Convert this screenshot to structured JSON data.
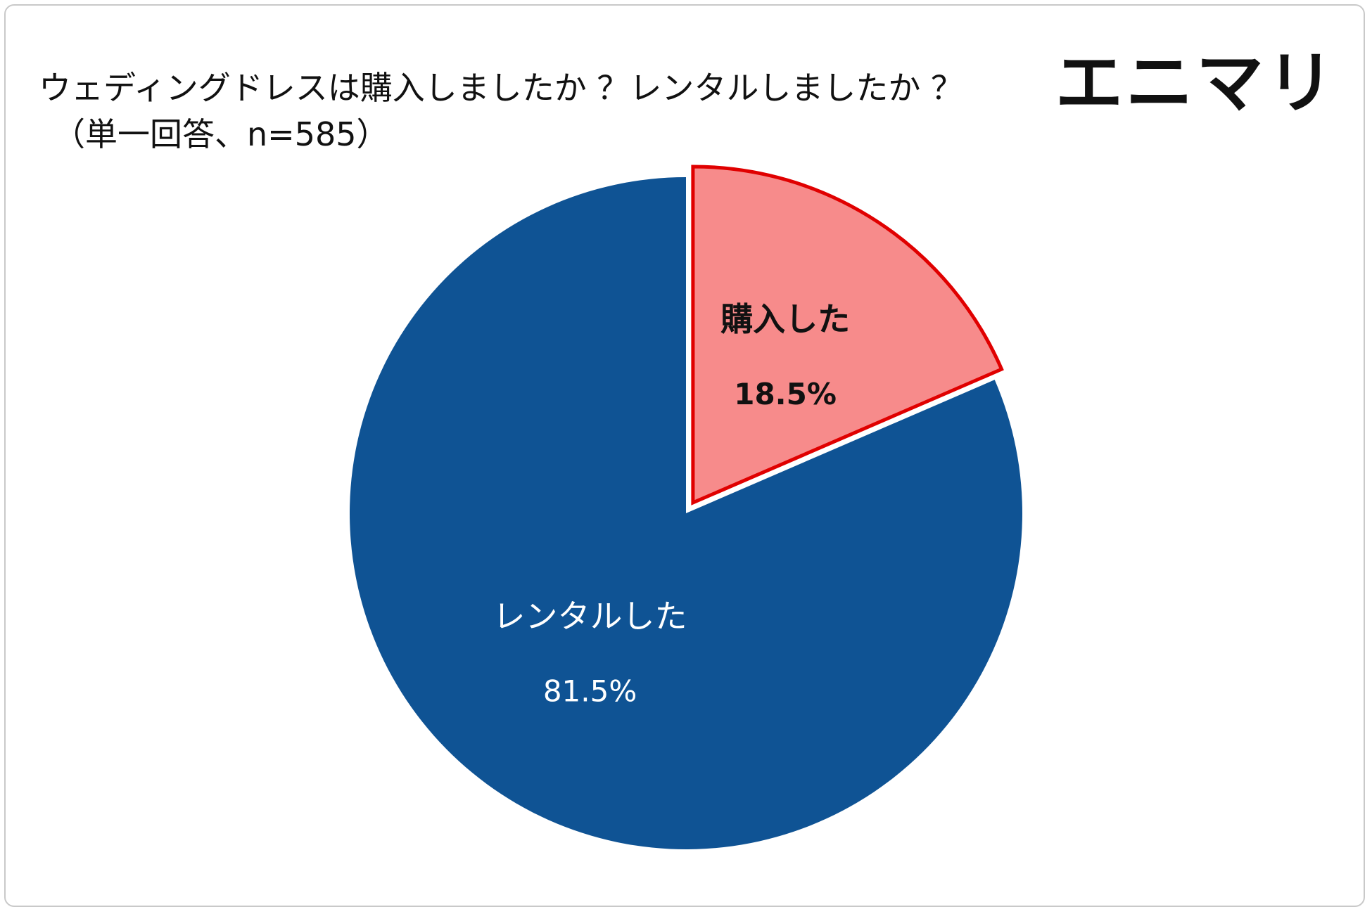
{
  "title": {
    "line1": "ウェディングドレスは購入しましたか ？レンタルしましたか ？",
    "line2": "（単一回答、n=585）"
  },
  "brand": {
    "logo_text": "エニマリ"
  },
  "chart_data": {
    "type": "pie",
    "title": "ウェディングドレスは購入しましたか ？レンタルしましたか ？（単一回答、n=585）",
    "n": 585,
    "slices": [
      {
        "label": "購入した",
        "value": 18.5,
        "value_label": "18.5%",
        "color": "#f78b8b",
        "outline": "#e00000",
        "highlight": true
      },
      {
        "label": "レンタルした",
        "value": 81.5,
        "value_label": "81.5%",
        "color": "#0f5394",
        "highlight": false
      }
    ]
  }
}
